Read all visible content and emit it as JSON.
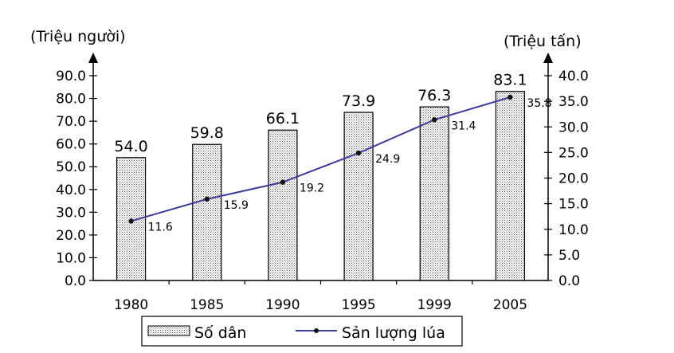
{
  "chart_data": {
    "type": "bar+line",
    "categories": [
      "1980",
      "1985",
      "1990",
      "1995",
      "1999",
      "2005"
    ],
    "y_left": {
      "unit": "(Triệu người)",
      "range": [
        0,
        90
      ],
      "ticks": [
        "0.0",
        "10.0",
        "20.0",
        "30.0",
        "40.0",
        "50.0",
        "60.0",
        "70.0",
        "80.0",
        "90.0"
      ]
    },
    "y_right": {
      "unit": "(Triệu tấn)",
      "range": [
        0,
        40
      ],
      "ticks": [
        "0.0",
        "5.0",
        "10.0",
        "15.0",
        "20.0",
        "25.0",
        "30.0",
        "35.0",
        "40.0"
      ]
    },
    "series": [
      {
        "name": "Số dân",
        "kind": "bar",
        "axis": "left",
        "values": [
          54.0,
          59.8,
          66.1,
          73.9,
          76.3,
          83.1
        ],
        "labels": [
          "54.0",
          "59.8",
          "66.1",
          "73.9",
          "76.3",
          "83.1"
        ]
      },
      {
        "name": "Sản lượng lúa",
        "kind": "line",
        "axis": "right",
        "values": [
          11.6,
          15.9,
          19.2,
          24.9,
          31.4,
          35.8
        ],
        "labels": [
          "11.6",
          "15.9",
          "19.2",
          "24.9",
          "31.4",
          "35.8"
        ]
      }
    ],
    "colors": {
      "line": "#3a3a9a",
      "bar_fill": "#d9d9d9",
      "axis": "#000000"
    },
    "legend_position": "bottom-center"
  }
}
